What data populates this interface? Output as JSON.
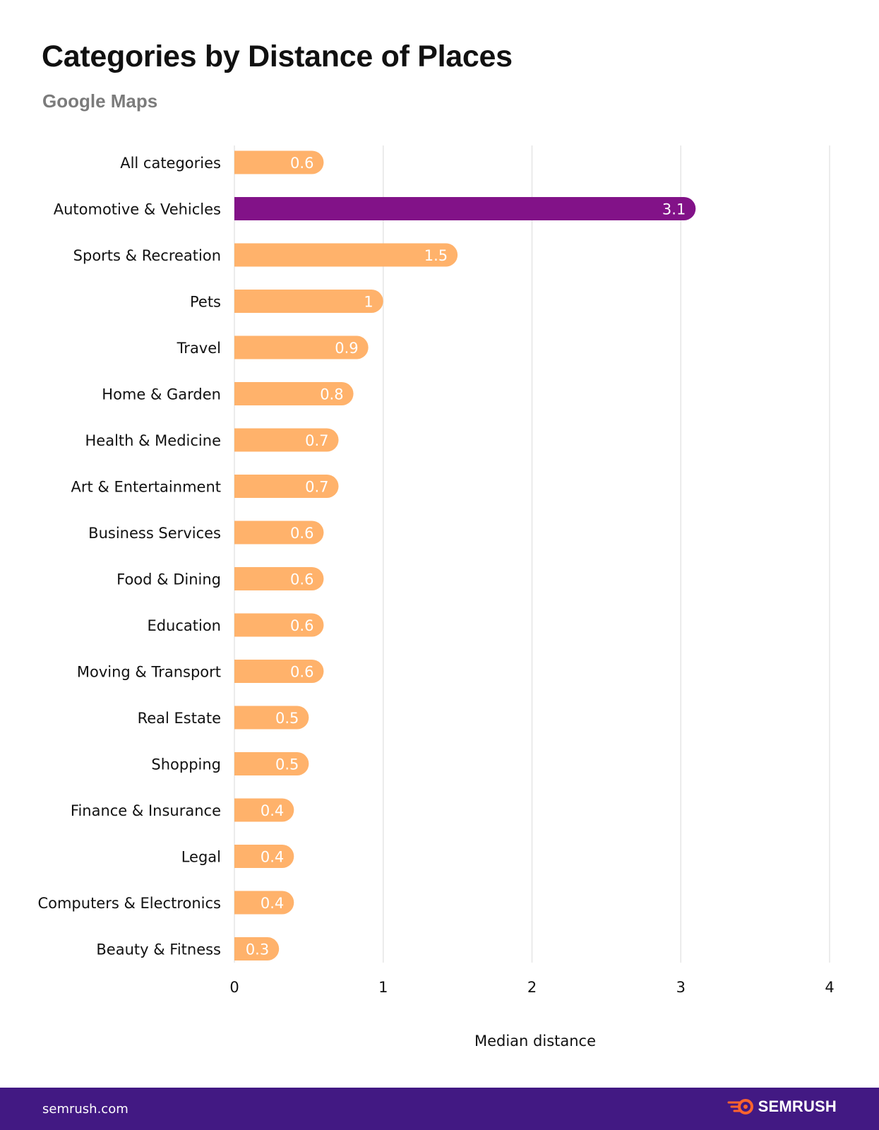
{
  "header": {
    "title": "Categories by Distance of Places",
    "subtitle": "Google Maps"
  },
  "footer": {
    "site": "semrush.com",
    "brand": "SEMRUSH"
  },
  "colors": {
    "bar_default": "#ffb26b",
    "bar_highlight": "#821288",
    "grid": "#e6e6e6",
    "footer_bg": "#421983",
    "brand_orange": "#ff642d"
  },
  "chart_data": {
    "type": "bar",
    "orientation": "horizontal",
    "title": "Categories by Distance of Places",
    "subtitle": "Google Maps",
    "xlabel": "Median distance",
    "ylabel": "",
    "xlim": [
      0,
      4
    ],
    "xticks": [
      0,
      1,
      2,
      3,
      4
    ],
    "grid": true,
    "categories": [
      "All categories",
      "Automotive & Vehicles",
      "Sports & Recreation",
      "Pets",
      "Travel",
      "Home & Garden",
      "Health & Medicine",
      "Art & Entertainment",
      "Business Services",
      "Food & Dining",
      "Education",
      "Moving & Transport",
      "Real Estate",
      "Shopping",
      "Finance & Insurance",
      "Legal",
      "Computers & Electronics",
      "Beauty & Fitness"
    ],
    "values": [
      0.6,
      3.1,
      1.5,
      1,
      0.9,
      0.8,
      0.7,
      0.7,
      0.6,
      0.6,
      0.6,
      0.6,
      0.5,
      0.5,
      0.4,
      0.4,
      0.4,
      0.3
    ],
    "highlight": "Automotive & Vehicles"
  }
}
